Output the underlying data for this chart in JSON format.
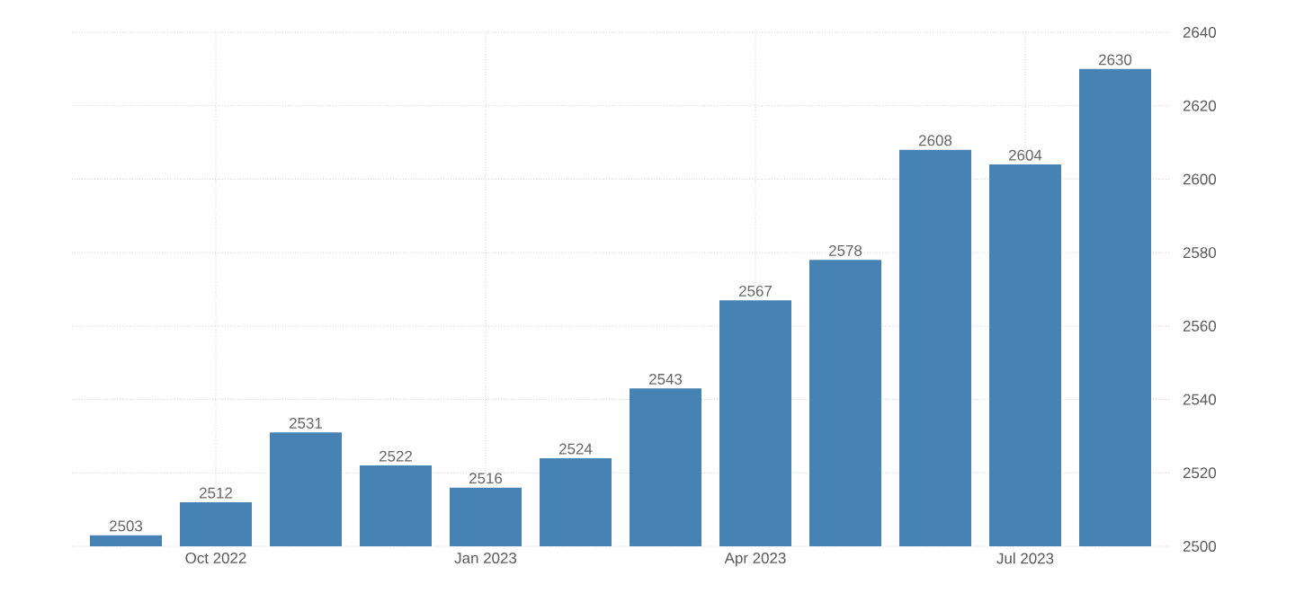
{
  "chart_data": {
    "type": "bar",
    "categories": [
      null,
      "Oct 2022",
      null,
      null,
      "Jan 2023",
      null,
      null,
      "Apr 2023",
      null,
      null,
      "Jul 2023",
      null
    ],
    "values": [
      2503,
      2512,
      2531,
      2522,
      2516,
      2524,
      2543,
      2567,
      2578,
      2608,
      2604,
      2630
    ],
    "color": "#4682b4",
    "ylim": [
      2500,
      2640
    ],
    "yticks": [
      2500,
      2520,
      2540,
      2560,
      2580,
      2600,
      2620,
      2640
    ],
    "grid": true,
    "data_labels": true
  }
}
